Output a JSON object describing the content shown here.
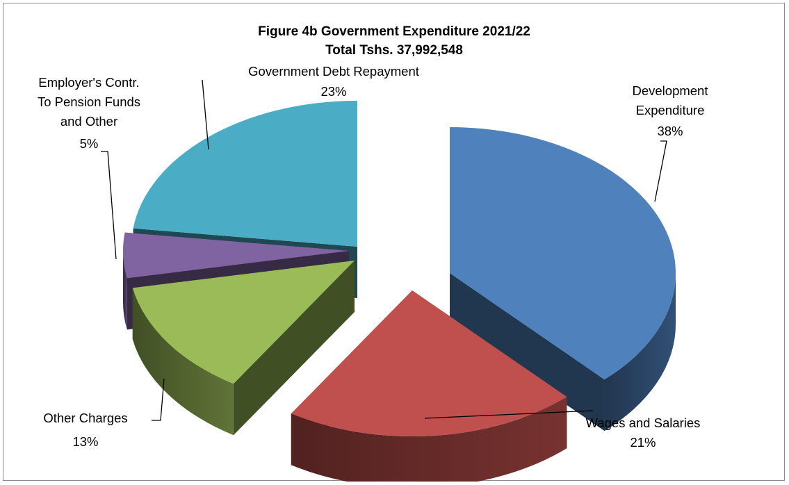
{
  "chart_data": {
    "type": "pie",
    "style": "3d-exploded",
    "title": "Figure 4b  Government Expenditure 2021/22",
    "subtitle": "Total Tshs. 37,992,548",
    "legend": "none",
    "slices": [
      {
        "name": "Development Expenditure",
        "label_lines": [
          "Development",
          "Expenditure",
          "38%"
        ],
        "value": 38,
        "color": "#4f81bd"
      },
      {
        "name": "Wages and Salaries",
        "label_lines": [
          "Wages and Salaries",
          "21%"
        ],
        "value": 21,
        "color": "#c0504d"
      },
      {
        "name": "Other Charges",
        "label_lines": [
          "Other Charges",
          "13%"
        ],
        "value": 13,
        "color": "#9bbb59"
      },
      {
        "name": "Employer's Contr. To Pension Funds and Other",
        "label_lines": [
          "Employer's Contr.",
          "To Pension Funds",
          "and Other",
          "5%"
        ],
        "value": 5,
        "color": "#8064a2"
      },
      {
        "name": "Government Debt Repayment",
        "label_lines": [
          "Government  Debt Repayment",
          "23%"
        ],
        "value": 23,
        "color": "#4bacc6"
      }
    ]
  }
}
